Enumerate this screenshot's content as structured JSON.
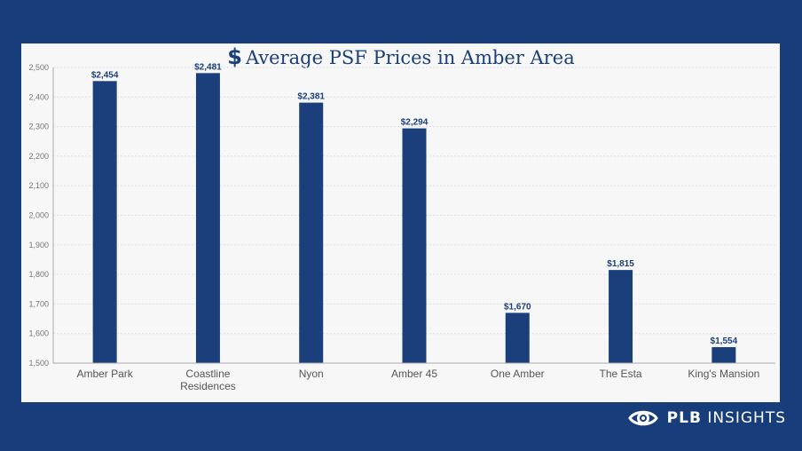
{
  "chart_data": {
    "type": "bar",
    "title": "Average PSF Prices in Amber Area",
    "title_icon": "dollar-icon",
    "categories": [
      "Amber Park",
      "Coastline Residences",
      "Nyon",
      "Amber 45",
      "One Amber",
      "The Esta",
      "King's Mansion"
    ],
    "category_lines": [
      [
        "Amber Park"
      ],
      [
        "Coastline",
        "Residences"
      ],
      [
        "Nyon"
      ],
      [
        "Amber 45"
      ],
      [
        "One Amber"
      ],
      [
        "The Esta"
      ],
      [
        "King's Mansion"
      ]
    ],
    "values": [
      2454,
      2481,
      2381,
      2294,
      1670,
      1815,
      1554
    ],
    "data_labels": [
      "$2,454",
      "$2,481",
      "$2,381",
      "$2,294",
      "$1,670",
      "$1,815",
      "$1,554"
    ],
    "y_ticks": [
      "1,500",
      "1,600",
      "1,700",
      "1,800",
      "1,900",
      "2,000",
      "2,100",
      "2,200",
      "2,300",
      "2,400",
      "2,500"
    ],
    "ylim": [
      1500,
      2500
    ],
    "xlabel": "",
    "ylabel": "",
    "grid": true,
    "legend": "none",
    "bar_color": "#1b3f7a"
  },
  "brand": {
    "strong": "PLB",
    "rest": " INSIGHTS",
    "icon": "eye-icon"
  },
  "colors": {
    "background": "#173d7a",
    "panel": "#f7f7f7"
  }
}
